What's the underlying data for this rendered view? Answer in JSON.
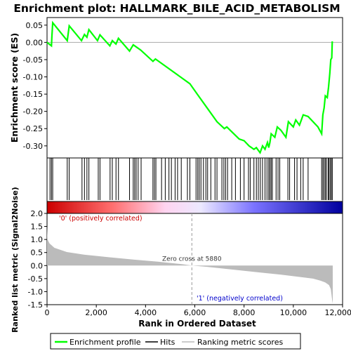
{
  "chart_data": {
    "type": "line",
    "title": "Enrichment plot: HALLMARK_BILE_ACID_METABOLISM",
    "es_panel": {
      "ylabel": "Enrichment score (ES)",
      "ylim": [
        -0.335,
        0.072
      ],
      "yticks": [
        "0.05",
        "0.00",
        "-0.05",
        "-0.10",
        "-0.15",
        "-0.20",
        "-0.25",
        "-0.30"
      ],
      "ytick_values": [
        0.05,
        0.0,
        -0.05,
        -0.1,
        -0.15,
        -0.2,
        -0.25,
        -0.3
      ],
      "series": [
        {
          "name": "Enrichment profile",
          "color": "#00ff00",
          "x": [
            0,
            180,
            200,
            230,
            820,
            900,
            1400,
            1520,
            1620,
            1700,
            2050,
            2150,
            2550,
            2650,
            2800,
            2900,
            3350,
            3500,
            3600,
            3800,
            4300,
            4400,
            5800,
            6100,
            6500,
            6900,
            7200,
            7300,
            7800,
            8000,
            8200,
            8400,
            8500,
            8650,
            8750,
            8850,
            8950,
            9000,
            9050,
            9100,
            9250,
            9350,
            9500,
            9700,
            9800,
            10000,
            10100,
            10250,
            10400,
            10600,
            10800,
            11000,
            11150,
            11200,
            11250,
            11300,
            11380,
            11430,
            11480,
            11520,
            11560,
            11580
          ],
          "y": [
            0.0,
            -0.01,
            0.02,
            0.057,
            0.005,
            0.048,
            0.005,
            0.023,
            0.015,
            0.037,
            0.005,
            0.022,
            -0.01,
            0.005,
            -0.005,
            0.012,
            -0.025,
            -0.007,
            -0.012,
            -0.022,
            -0.055,
            -0.048,
            -0.12,
            -0.15,
            -0.19,
            -0.23,
            -0.25,
            -0.245,
            -0.28,
            -0.285,
            -0.3,
            -0.31,
            -0.305,
            -0.32,
            -0.3,
            -0.31,
            -0.29,
            -0.305,
            -0.29,
            -0.265,
            -0.275,
            -0.245,
            -0.255,
            -0.275,
            -0.23,
            -0.245,
            -0.225,
            -0.24,
            -0.21,
            -0.215,
            -0.23,
            -0.245,
            -0.265,
            -0.21,
            -0.19,
            -0.155,
            -0.16,
            -0.13,
            -0.09,
            -0.05,
            -0.045,
            0.003
          ]
        }
      ]
    },
    "hits": [
      120,
      180,
      230,
      820,
      900,
      1420,
      1520,
      1620,
      1700,
      2080,
      2150,
      2560,
      2650,
      2800,
      2900,
      3350,
      3500,
      3560,
      3620,
      3700,
      3820,
      4300,
      4360,
      4420,
      4650,
      4800,
      4950,
      5050,
      5200,
      5300,
      5450,
      5700,
      5800,
      6050,
      6120,
      6180,
      6250,
      6350,
      6450,
      6520,
      6650,
      6820,
      6900,
      7100,
      7180,
      7250,
      7330,
      7500,
      7650,
      7850,
      8000,
      8180,
      8250,
      8400,
      8500,
      8580,
      8660,
      8750,
      8850,
      8930,
      9000,
      9050,
      9100,
      9150,
      9300,
      9380,
      9450,
      9780,
      9850,
      10050,
      10150,
      10300,
      10400,
      10600,
      11150,
      11200,
      11250,
      11300,
      11350,
      11420,
      11450,
      11500,
      11550,
      11580
    ],
    "hits_legend": "Hits",
    "rank_panel": {
      "ylabel": "Ranked list metric (Signal2Noise)",
      "xlabel": "Rank in Ordered Dataset",
      "ylim": [
        -1.5,
        2.0
      ],
      "yticks": [
        "2.0",
        "1.5",
        "1.0",
        "0.5",
        "0.0",
        "-0.5",
        "-1.0",
        "-1.5"
      ],
      "ytick_values": [
        2.0,
        1.5,
        1.0,
        0.5,
        0.0,
        -0.5,
        -1.0,
        -1.5
      ],
      "xticks": [
        "0",
        "2,000",
        "4,000",
        "6,000",
        "8,000",
        "10,000",
        "12,000"
      ],
      "xtick_values": [
        0,
        2000,
        4000,
        6000,
        8000,
        10000,
        12000
      ],
      "xlim": [
        0,
        12000
      ],
      "n_genes": 11600,
      "metric_curve": {
        "x": [
          0,
          20,
          100,
          300,
          800,
          1500,
          2500,
          3500,
          4500,
          5500,
          5880,
          6500,
          7500,
          8500,
          9500,
          10200,
          10800,
          11100,
          11300,
          11450,
          11520,
          11580,
          11600
        ],
        "y": [
          1.5,
          1.0,
          0.85,
          0.68,
          0.52,
          0.42,
          0.32,
          0.23,
          0.15,
          0.05,
          0.0,
          -0.05,
          -0.15,
          -0.25,
          -0.35,
          -0.43,
          -0.5,
          -0.58,
          -0.65,
          -0.75,
          -0.9,
          -1.35,
          -1.45
        ]
      },
      "zero_cross_x": 5880,
      "zero_cross_label": "Zero cross at 5880",
      "pos_label": "'0' (positively correlated)",
      "neg_label": "'1' (negatively correlated)",
      "pos_color": "#cc0000",
      "neg_color": "#0000cc"
    },
    "legend": {
      "placement": "bottom",
      "items": [
        {
          "label": "Enrichment profile",
          "color": "#00ff00"
        },
        {
          "label": "Hits",
          "color": "#000000"
        },
        {
          "label": "Ranking metric scores",
          "color": "#bbbbbb"
        }
      ]
    }
  }
}
